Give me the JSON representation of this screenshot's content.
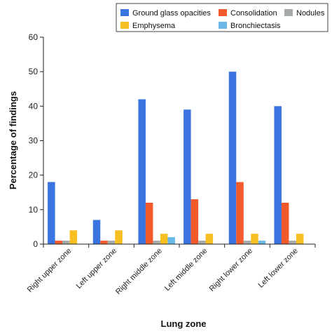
{
  "chart_data": {
    "type": "bar",
    "xlabel": "Lung zone",
    "ylabel": "Percentage of findings",
    "ylim": [
      0,
      60
    ],
    "yticks": [
      0,
      10,
      20,
      30,
      40,
      50,
      60
    ],
    "grid": false,
    "legend_position": "top-right",
    "categories": [
      "Right upper zone",
      "Left upper zone",
      "Right middle zone",
      "Left middle zone",
      "Right lower zone",
      "Left lower zone"
    ],
    "series": [
      {
        "name": "Ground glass opacities",
        "color": "#3a74e0",
        "values": [
          18,
          7,
          42,
          39,
          50,
          40
        ]
      },
      {
        "name": "Consolidation",
        "color": "#f25a2c",
        "values": [
          1,
          1,
          12,
          13,
          18,
          12
        ]
      },
      {
        "name": "Nodules",
        "color": "#a6aaa8",
        "values": [
          1,
          1,
          1,
          1,
          1,
          1
        ]
      },
      {
        "name": "Emphysema",
        "color": "#f7bf22",
        "values": [
          4,
          4,
          3,
          3,
          3,
          3
        ]
      },
      {
        "name": "Bronchiectasis",
        "color": "#6ab9e8",
        "values": [
          0,
          0,
          2,
          0,
          1,
          0
        ]
      }
    ]
  }
}
